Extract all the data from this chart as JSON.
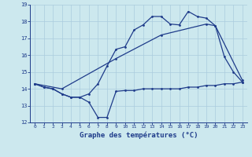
{
  "title": "Graphe des températures (°C)",
  "bg_color": "#cce8ee",
  "line_color": "#1e3b8a",
  "grid_color": "#aaccdd",
  "xmin": 0,
  "xmax": 23,
  "ymin": 12,
  "ymax": 19,
  "yticks": [
    12,
    13,
    14,
    15,
    16,
    17,
    18,
    19
  ],
  "xticks": [
    0,
    1,
    2,
    3,
    4,
    5,
    6,
    7,
    8,
    9,
    10,
    11,
    12,
    13,
    14,
    15,
    16,
    17,
    18,
    19,
    20,
    21,
    22,
    23
  ],
  "line1_x": [
    0,
    1,
    2,
    3,
    4,
    5,
    6,
    7,
    8,
    9,
    10,
    11,
    12,
    13,
    14,
    15,
    16,
    17,
    18,
    19,
    20,
    21,
    22,
    23
  ],
  "line1_y": [
    14.3,
    14.1,
    14.0,
    13.7,
    13.5,
    13.5,
    13.7,
    14.3,
    15.35,
    16.35,
    16.5,
    17.5,
    17.8,
    18.3,
    18.3,
    17.85,
    17.8,
    18.6,
    18.3,
    18.2,
    17.75,
    15.9,
    15.0,
    14.4
  ],
  "line2_x": [
    0,
    1,
    2,
    3,
    4,
    5,
    6,
    7,
    8,
    9,
    10,
    11,
    12,
    13,
    14,
    15,
    16,
    17,
    18,
    19,
    20,
    21,
    22,
    23
  ],
  "line2_y": [
    14.3,
    14.1,
    14.0,
    13.7,
    13.5,
    13.5,
    13.2,
    12.3,
    12.3,
    13.85,
    13.9,
    13.9,
    14.0,
    14.0,
    14.0,
    14.0,
    14.0,
    14.1,
    14.1,
    14.2,
    14.2,
    14.3,
    14.3,
    14.4
  ],
  "line3_x": [
    0,
    3,
    9,
    14,
    19,
    20,
    23
  ],
  "line3_y": [
    14.3,
    14.0,
    15.8,
    17.2,
    17.85,
    17.75,
    14.5
  ]
}
